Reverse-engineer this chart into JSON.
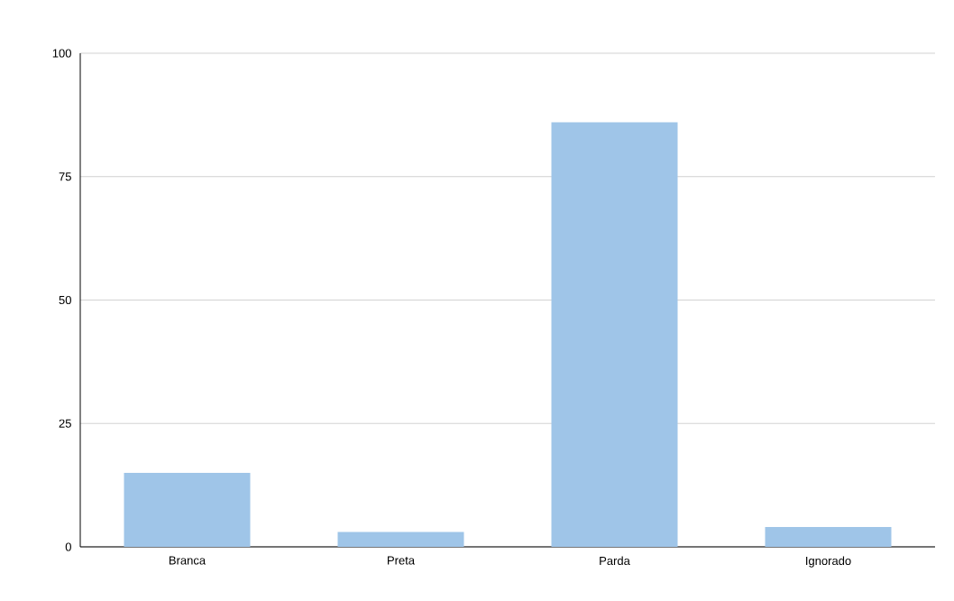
{
  "chart_data": {
    "type": "bar",
    "categories": [
      "Branca",
      "Preta",
      "Parda",
      "Ignorado"
    ],
    "values": [
      15,
      3,
      86,
      4
    ],
    "color": "#9fc5e8",
    "ylim": [
      0,
      100
    ],
    "yticks": [
      0,
      25,
      50,
      75,
      100
    ],
    "grid": "y"
  }
}
